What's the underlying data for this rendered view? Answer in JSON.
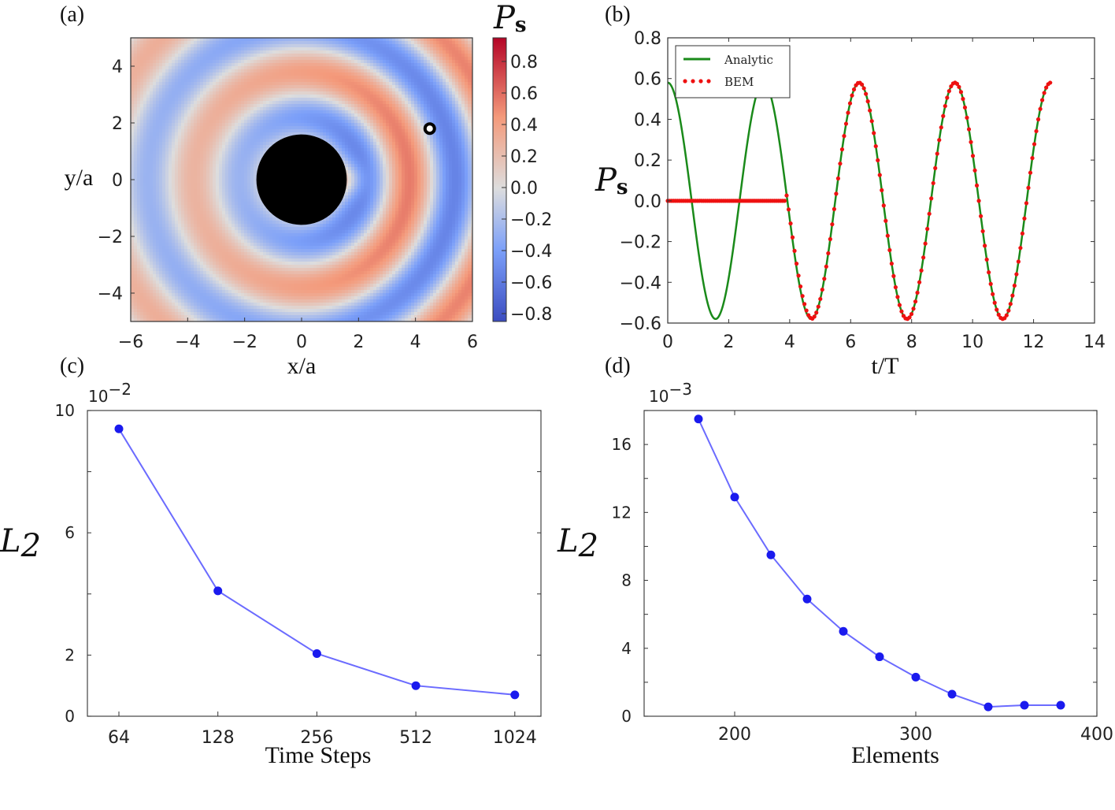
{
  "chart_data": [
    {
      "panel": "(a)",
      "type": "heatmap",
      "xlabel": "x/a",
      "ylabel": "y/a",
      "xlim": [
        -6,
        6
      ],
      "ylim": [
        -5,
        5
      ],
      "xticks": [
        "−6",
        "−4",
        "−2",
        "0",
        "2",
        "4",
        "6"
      ],
      "yticks": [
        "4",
        "2",
        "0",
        "−2",
        "−4"
      ],
      "colorbar_label": "P",
      "colorbar_label_sub": "s",
      "colorbar_range": [
        -0.85,
        0.95
      ],
      "colorbar_ticks": [
        "0.8",
        "0.6",
        "0.4",
        "0.2",
        "0.0",
        "−0.2",
        "−0.4",
        "−0.6",
        "−0.8"
      ],
      "scatterer": {
        "center": [
          0,
          0
        ],
        "radius": 1.25
      },
      "probe_point": [
        4.5,
        1.8
      ],
      "colors": {
        "low": "#3b4cc0",
        "mid": "#dddddd",
        "high": "#b40426"
      }
    },
    {
      "panel": "(b)",
      "type": "line",
      "xlabel": "t/T",
      "ylabel": "P",
      "ylabel_sub": "s",
      "xlim": [
        0,
        14
      ],
      "ylim": [
        -0.6,
        0.8
      ],
      "xticks": [
        "0",
        "2",
        "4",
        "6",
        "8",
        "10",
        "12",
        "14"
      ],
      "yticks": [
        "0.8",
        "0.6",
        "0.4",
        "0.2",
        "0.0",
        "−0.2",
        "−0.4",
        "−0.6"
      ],
      "series": [
        {
          "name": "Analytic",
          "color": "#1a8a1a",
          "style": "solid",
          "amplitude": 0.58,
          "period": 3.14,
          "t_start": 0,
          "t_end": 12.6
        },
        {
          "name": "BEM",
          "color": "#ee1111",
          "style": "dotted",
          "amplitude": 0.58,
          "period": 3.14,
          "t_start": 0,
          "t_end": 12.6,
          "zero_until": 3.85
        }
      ]
    },
    {
      "panel": "(c)",
      "type": "line",
      "xscale": "log2",
      "xlabel": "Time Steps",
      "ylabel": "L",
      "ylabel_sub": "2",
      "multiplier": "10",
      "multiplier_exp": "−2",
      "x": [
        64,
        128,
        256,
        512,
        1024
      ],
      "xticks": [
        "64",
        "128",
        "256",
        "512",
        "1024"
      ],
      "yticks": [
        "10",
        "6",
        "2",
        "0"
      ],
      "ylim": [
        0,
        10
      ],
      "series": [
        {
          "name": "L2 error",
          "color": "#1a1aee",
          "values": [
            9.4,
            4.1,
            2.05,
            1.0,
            0.7
          ]
        }
      ]
    },
    {
      "panel": "(d)",
      "type": "line",
      "xlabel": "Elements",
      "ylabel": "L",
      "ylabel_sub": "2",
      "multiplier": "10",
      "multiplier_exp": "−3",
      "x": [
        180,
        200,
        220,
        240,
        260,
        280,
        300,
        320,
        340,
        360,
        380
      ],
      "xlim": [
        150,
        400
      ],
      "ylim": [
        0,
        18
      ],
      "xticks": [
        "200",
        "300",
        "400"
      ],
      "yticks": [
        "16",
        "12",
        "8",
        "4",
        "0"
      ],
      "series": [
        {
          "name": "L2 error",
          "color": "#1a1aee",
          "values": [
            17.5,
            12.9,
            9.5,
            6.9,
            5.0,
            3.5,
            2.3,
            1.3,
            0.55,
            0.65,
            0.65
          ]
        }
      ]
    }
  ],
  "legend": {
    "analytic": "Analytic",
    "bem": "BEM"
  }
}
